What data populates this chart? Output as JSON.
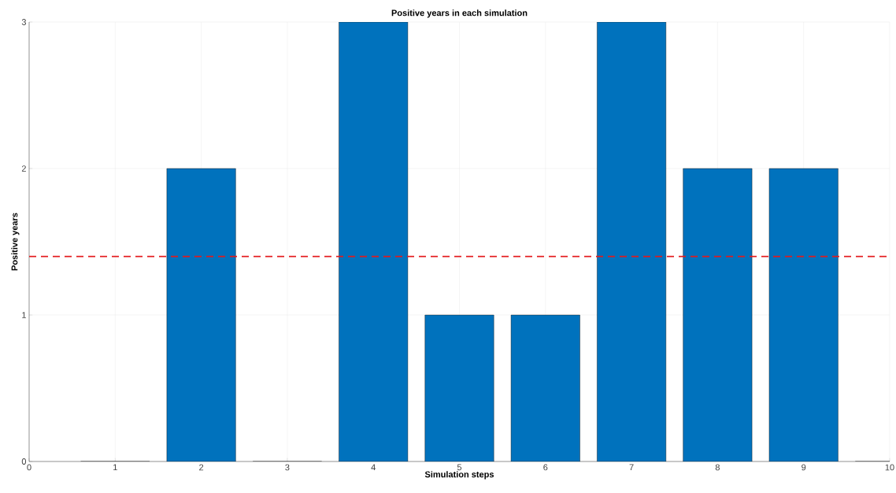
{
  "chart_data": {
    "type": "bar",
    "title": "Positive years in each simulation",
    "xlabel": "Simulation steps",
    "ylabel": "Positive years",
    "x": [
      1,
      2,
      3,
      4,
      5,
      6,
      7,
      8,
      9,
      10
    ],
    "values": [
      0,
      2,
      0,
      3,
      1,
      1,
      3,
      2,
      2,
      0
    ],
    "color": "#0072bd",
    "xlim": [
      0,
      10
    ],
    "xticks": [
      0,
      1,
      2,
      3,
      4,
      5,
      6,
      7,
      8,
      9,
      10
    ],
    "ylim": [
      0,
      3
    ],
    "yticks": [
      0,
      1,
      2,
      3
    ],
    "grid": true,
    "ref_lines": [
      {
        "axis": "y",
        "value": 1.4,
        "color": "#e31a1c",
        "line_style": "dashed"
      }
    ]
  }
}
